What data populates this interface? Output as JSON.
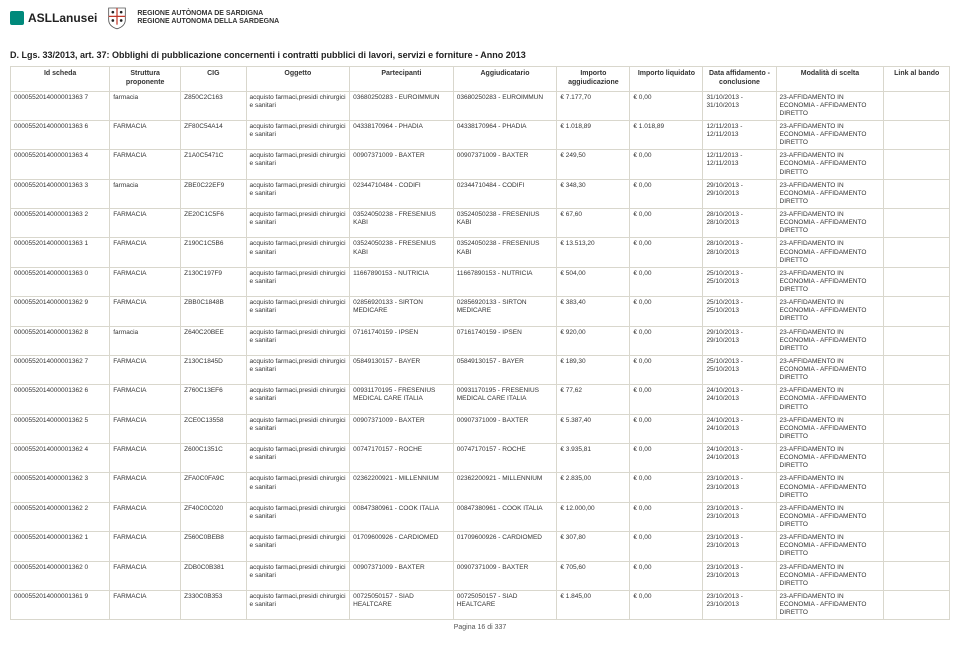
{
  "header": {
    "brand": "ASLLanusei",
    "org_line1": "REGIONE AUTÒNOMA DE SARDIGNA",
    "org_line2": "REGIONE AUTONOMA DELLA SARDEGNA"
  },
  "title": "D. Lgs. 33/2013, art. 37: Obblighi di pubblicazione concernenti i contratti pubblici di lavori, servizi e forniture - Anno 2013",
  "columns": [
    "Id scheda",
    "Struttura proponente",
    "CIG",
    "Oggetto",
    "Partecipanti",
    "Aggiudicatario",
    "Importo aggiudicazione",
    "Importo liquidato",
    "Data affidamento - conclusione",
    "Modalità di scelta",
    "Link al bando"
  ],
  "oggetto_common": "acquisto farmaci,presidi chirurgici e sanitari",
  "modalita_common": "23-AFFIDAMENTO IN ECONOMIA - AFFIDAMENTO DIRETTO",
  "rows": [
    {
      "id": "000055201400000136​3 7",
      "struttura": "farmacia",
      "cig": "Z850C2C163",
      "par": "03680250283 - EUROIMMUN",
      "agg": "03680250283 - EUROIMMUN",
      "imp_a": "€ 7.177,70",
      "imp_l": "€ 0,00",
      "date": "31/10/2013 - 31/10/2013"
    },
    {
      "id": "000055201400000136​3 6",
      "struttura": "FARMACIA",
      "cig": "ZF80C54A14",
      "par": "04338170964 - PHADIA",
      "agg": "04338170964 - PHADIA",
      "imp_a": "€ 1.018,89",
      "imp_l": "€ 1.018,89",
      "date": "12/11/2013 - 12/11/2013"
    },
    {
      "id": "000055201400000136​3 4",
      "struttura": "FARMACIA",
      "cig": "Z1A0C5471C",
      "par": "00907371009 - BAXTER",
      "agg": "00907371009 - BAXTER",
      "imp_a": "€ 249,50",
      "imp_l": "€ 0,00",
      "date": "12/11/2013 - 12/11/2013"
    },
    {
      "id": "000055201400000136​3 3",
      "struttura": "farmacia",
      "cig": "ZBE0C22EF9",
      "par": "02344710484 - CODIFI",
      "agg": "02344710484 - CODIFI",
      "imp_a": "€ 348,30",
      "imp_l": "€ 0,00",
      "date": "29/10/2013 - 29/10/2013"
    },
    {
      "id": "000055201400000136​3 2",
      "struttura": "FARMACIA",
      "cig": "ZE20C1C5F6",
      "par": "03524050238 - FRESENIUS KABI",
      "agg": "03524050238 - FRESENIUS KABI",
      "imp_a": "€ 67,60",
      "imp_l": "€ 0,00",
      "date": "28/10/2013 - 28/10/2013"
    },
    {
      "id": "000055201400000136​3 1",
      "struttura": "FARMACIA",
      "cig": "Z190C1C5B6",
      "par": "03524050238 - FRESENIUS KABI",
      "agg": "03524050238 - FRESENIUS KABI",
      "imp_a": "€ 13.513,20",
      "imp_l": "€ 0,00",
      "date": "28/10/2013 - 28/10/2013"
    },
    {
      "id": "000055201400000136​3 0",
      "struttura": "FARMACIA",
      "cig": "Z130C197F9",
      "par": "11667890153 - NUTRICIA",
      "agg": "11667890153 - NUTRICIA",
      "imp_a": "€ 504,00",
      "imp_l": "€ 0,00",
      "date": "25/10/2013 - 25/10/2013"
    },
    {
      "id": "000055201400000136​2 9",
      "struttura": "FARMACIA",
      "cig": "ZBB0C1848B",
      "par": "02856920133 - SIRTON MEDICARE",
      "agg": "02856920133 - SIRTON MEDICARE",
      "imp_a": "€ 383,40",
      "imp_l": "€ 0,00",
      "date": "25/10/2013 - 25/10/2013"
    },
    {
      "id": "000055201400000136​2 8",
      "struttura": "farmacia",
      "cig": "Z640C20BEE",
      "par": "07161740159 - IPSEN",
      "agg": "07161740159 - IPSEN",
      "imp_a": "€ 920,00",
      "imp_l": "€ 0,00",
      "date": "29/10/2013 - 29/10/2013"
    },
    {
      "id": "000055201400000136​2 7",
      "struttura": "FARMACIA",
      "cig": "Z130C1845D",
      "par": "05849130157 - BAYER",
      "agg": "05849130157 - BAYER",
      "imp_a": "€ 189,30",
      "imp_l": "€ 0,00",
      "date": "25/10/2013 - 25/10/2013"
    },
    {
      "id": "000055201400000136​2 6",
      "struttura": "FARMACIA",
      "cig": "Z760C13EF6",
      "par": "00931170195 - FRESENIUS MEDICAL CARE ITALIA",
      "agg": "00931170195 - FRESENIUS MEDICAL CARE ITALIA",
      "imp_a": "€ 77,62",
      "imp_l": "€ 0,00",
      "date": "24/10/2013 - 24/10/2013"
    },
    {
      "id": "000055201400000136​2 5",
      "struttura": "FARMACIA",
      "cig": "ZCE0C13558",
      "par": "00907371009 - BAXTER",
      "agg": "00907371009 - BAXTER",
      "imp_a": "€ 5.387,40",
      "imp_l": "€ 0,00",
      "date": "24/10/2013 - 24/10/2013"
    },
    {
      "id": "000055201400000136​2 4",
      "struttura": "FARMACIA",
      "cig": "Z600C1351C",
      "par": "00747170157 - ROCHE",
      "agg": "00747170157 - ROCHE",
      "imp_a": "€ 3.935,81",
      "imp_l": "€ 0,00",
      "date": "24/10/2013 - 24/10/2013"
    },
    {
      "id": "000055201400000136​2 3",
      "struttura": "FARMACIA",
      "cig": "ZFA0C0FA9C",
      "par": "02362200921 - MILLENNIUM",
      "agg": "02362200921 - MILLENNIUM",
      "imp_a": "€ 2.835,00",
      "imp_l": "€ 0,00",
      "date": "23/10/2013 - 23/10/2013"
    },
    {
      "id": "000055201400000136​2 2",
      "struttura": "FARMACIA",
      "cig": "ZF40C0C020",
      "par": "00847380961 - COOK ITALIA",
      "agg": "00847380961 - COOK ITALIA",
      "imp_a": "€ 12.000,00",
      "imp_l": "€ 0,00",
      "date": "23/10/2013 - 23/10/2013"
    },
    {
      "id": "000055201400000136​2 1",
      "struttura": "FARMACIA",
      "cig": "Z560C0BEB8",
      "par": "01709600926 - CARDIOMED",
      "agg": "01709600926 - CARDIOMED",
      "imp_a": "€ 307,80",
      "imp_l": "€ 0,00",
      "date": "23/10/2013 - 23/10/2013"
    },
    {
      "id": "000055201400000136​2 0",
      "struttura": "FARMACIA",
      "cig": "ZDB0C0B381",
      "par": "00907371009 - BAXTER",
      "agg": "00907371009 - BAXTER",
      "imp_a": "€ 705,60",
      "imp_l": "€ 0,00",
      "date": "23/10/2013 - 23/10/2013"
    },
    {
      "id": "000055201400000136​1 9",
      "struttura": "FARMACIA",
      "cig": "Z330C0B353",
      "par": "00725050157 - SIAD HEALTCARE",
      "agg": "00725050157 - SIAD HEALTCARE",
      "imp_a": "€ 1.845,00",
      "imp_l": "€ 0,00",
      "date": "23/10/2013 - 23/10/2013"
    }
  ],
  "pager": "Pagina 16 di 337",
  "colors": {
    "border": "#d9d7cd",
    "text": "#333333",
    "link": "#1a5fb4",
    "brand": "#00897b"
  }
}
